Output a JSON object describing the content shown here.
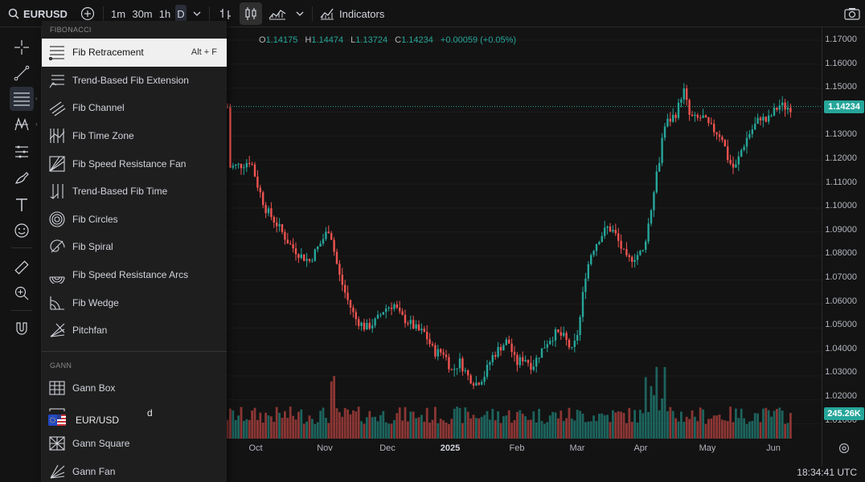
{
  "topbar": {
    "symbol": "EURUSD",
    "timeframes": [
      "1m",
      "30m",
      "1h",
      "D"
    ],
    "indicators_label": "Indicators"
  },
  "ohlc": {
    "o_label": "O",
    "o": "1.14175",
    "h_label": "H",
    "h": "1.14474",
    "l_label": "L",
    "l": "1.13724",
    "c_label": "C",
    "c": "1.14234",
    "change": "+0.00059 (+0.05%)"
  },
  "price_axis": {
    "ticks": [
      "1.17000",
      "1.16000",
      "1.15000",
      "1.14000",
      "1.13000",
      "1.12000",
      "1.11000",
      "1.10000",
      "1.09000",
      "1.08000",
      "1.07000",
      "1.06000",
      "1.05000",
      "1.04000",
      "1.03000",
      "1.02000",
      "1.01000"
    ],
    "current_price": "1.14234",
    "volume_badge": "245.26K"
  },
  "time_axis": {
    "ticks": [
      "Oct",
      "Nov",
      "Dec",
      "2025",
      "Feb",
      "Mar",
      "Apr",
      "May",
      "Jun"
    ]
  },
  "status": {
    "clock": "18:34:41 UTC"
  },
  "dropdown": {
    "fib_header": "FIBONACCI",
    "fib_items": [
      {
        "label": "Fib Retracement",
        "shortcut": "Alt + F",
        "icon": "fib-retracement-icon"
      },
      {
        "label": "Trend-Based Fib Extension",
        "icon": "trend-fib-extension-icon"
      },
      {
        "label": "Fib Channel",
        "icon": "fib-channel-icon"
      },
      {
        "label": "Fib Time Zone",
        "icon": "fib-time-zone-icon"
      },
      {
        "label": "Fib Speed Resistance Fan",
        "icon": "fib-speed-fan-icon"
      },
      {
        "label": "Trend-Based Fib Time",
        "icon": "trend-fib-time-icon"
      },
      {
        "label": "Fib Circles",
        "icon": "fib-circles-icon"
      },
      {
        "label": "Fib Spiral",
        "icon": "fib-spiral-icon"
      },
      {
        "label": "Fib Speed Resistance Arcs",
        "icon": "fib-speed-arcs-icon"
      },
      {
        "label": "Fib Wedge",
        "icon": "fib-wedge-icon"
      },
      {
        "label": "Pitchfan",
        "icon": "pitchfan-icon"
      }
    ],
    "gann_header": "GANN",
    "gann_items": [
      {
        "label": "Gann Box",
        "icon": "gann-box-icon"
      },
      {
        "label": "",
        "icon": "gann-square-fixed-icon"
      },
      {
        "label": "Gann Square",
        "icon": "gann-square-icon"
      },
      {
        "label": "Gann Fan",
        "icon": "gann-fan-icon"
      }
    ]
  },
  "overlay": {
    "label": "EUR/USD",
    "suffix": "d"
  },
  "colors": {
    "up": "#26a69a",
    "down": "#ef5350",
    "background": "#131313",
    "panel": "#1e1e1e"
  }
}
